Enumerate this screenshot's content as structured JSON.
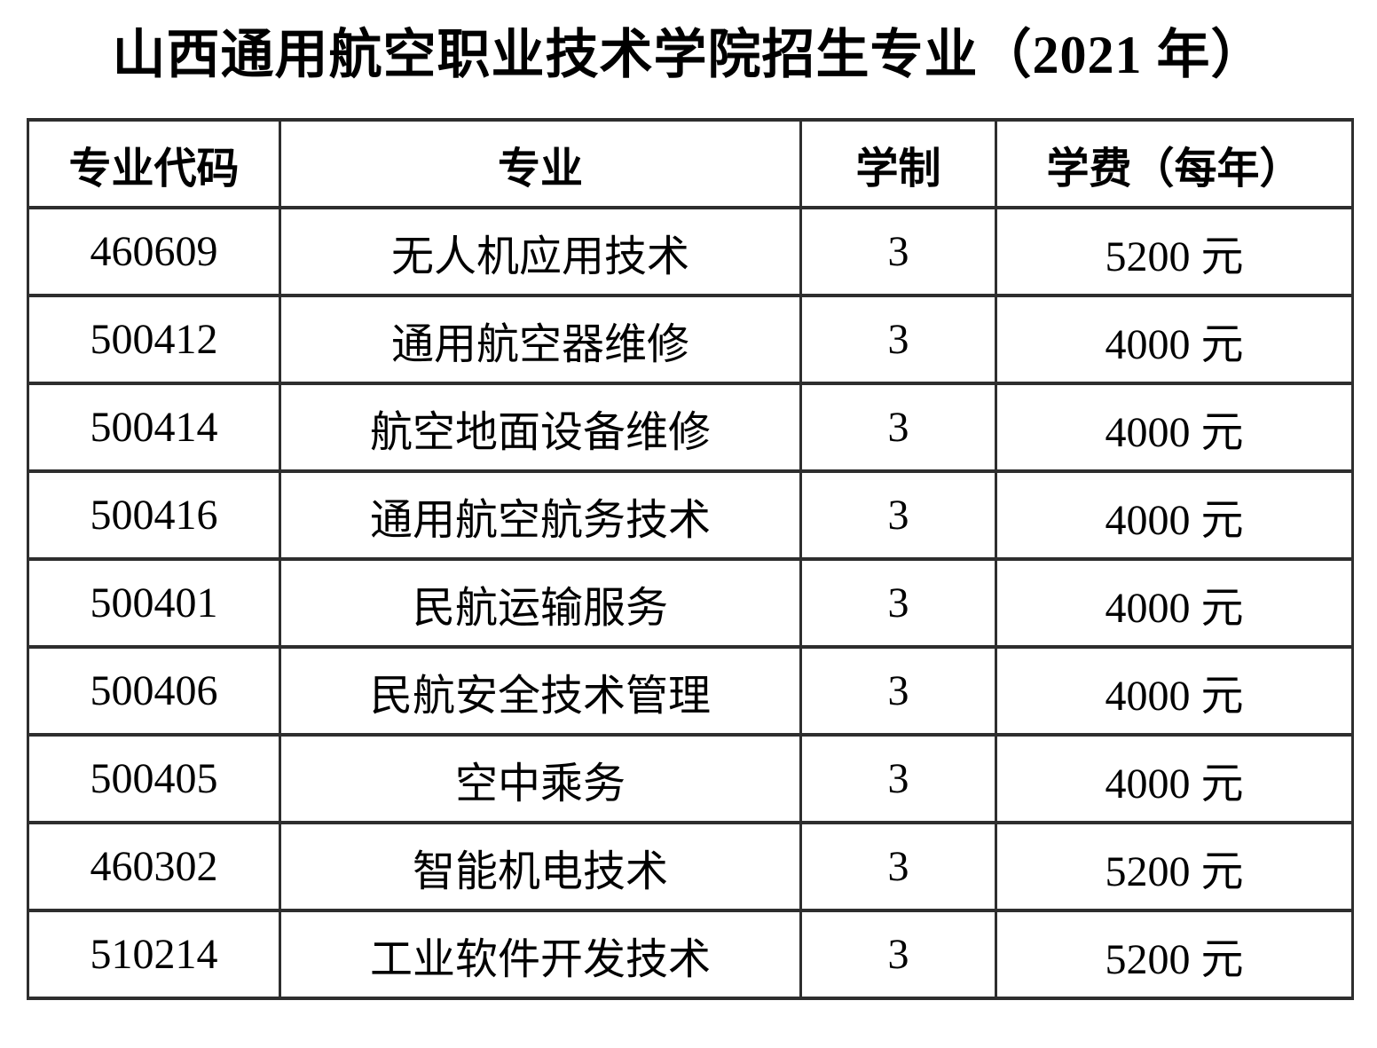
{
  "page_title": "山西通用航空职业技术学院招生专业（2021 年）",
  "table": {
    "columns": [
      "专业代码",
      "专业",
      "学制",
      "学费（每年）"
    ],
    "rows": [
      [
        "460609",
        "无人机应用技术",
        "3",
        "5200 元"
      ],
      [
        "500412",
        "通用航空器维修",
        "3",
        "4000 元"
      ],
      [
        "500414",
        "航空地面设备维修",
        "3",
        "4000 元"
      ],
      [
        "500416",
        "通用航空航务技术",
        "3",
        "4000 元"
      ],
      [
        "500401",
        "民航运输服务",
        "3",
        "4000 元"
      ],
      [
        "500406",
        "民航安全技术管理",
        "3",
        "4000 元"
      ],
      [
        "500405",
        "空中乘务",
        "3",
        "4000 元"
      ],
      [
        "460302",
        "智能机电技术",
        "3",
        "5200 元"
      ],
      [
        "510214",
        "工业软件开发技术",
        "3",
        "5200 元"
      ]
    ]
  },
  "colors": {
    "text": "#000000",
    "border": "#2e2e2e",
    "background": "#ffffff"
  }
}
